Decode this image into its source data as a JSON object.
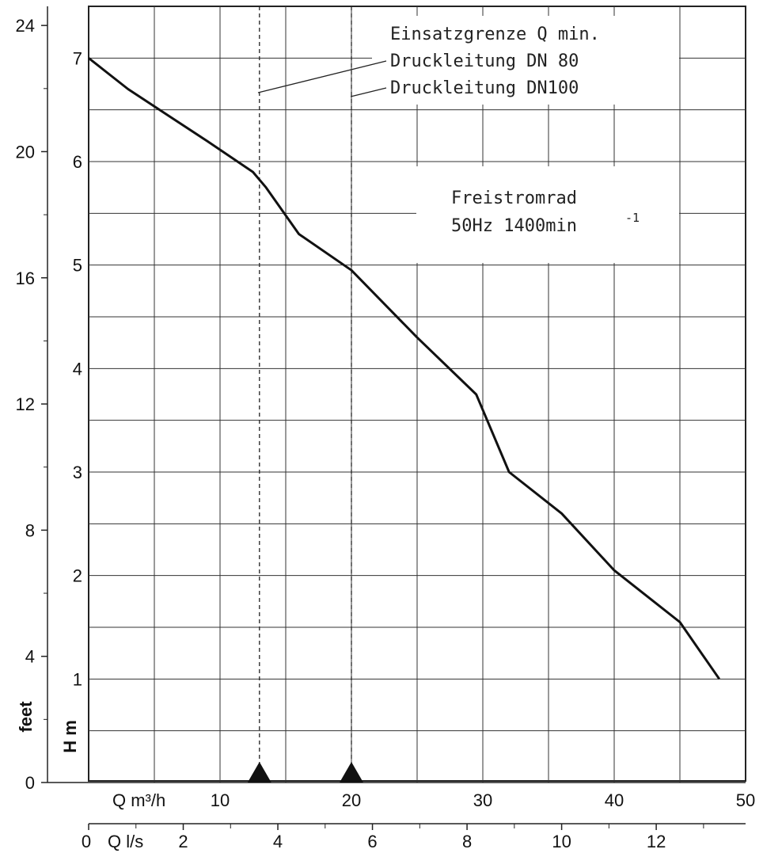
{
  "chart_data": {
    "type": "line",
    "x_unit_label": "Q m³/h",
    "x2_unit_label": "Q l/s",
    "y_unit_label": "H m",
    "y2_unit_label": "feet",
    "x_ticks": [
      "10",
      "20",
      "30",
      "40",
      "50"
    ],
    "x2_ticks": [
      "0",
      "2",
      "4",
      "6",
      "8",
      "10",
      "12"
    ],
    "y_ticks": [
      "1",
      "2",
      "3",
      "4",
      "5",
      "6",
      "7"
    ],
    "y2_ticks": [
      "0",
      "4",
      "8",
      "12",
      "16",
      "20",
      "24"
    ],
    "xlim": [
      0,
      50
    ],
    "ylim": [
      0,
      7.5
    ],
    "grid": true,
    "series": [
      {
        "x": [
          0,
          3,
          6,
          9,
          12.5,
          13.5,
          16,
          20,
          25,
          29.5,
          32,
          36,
          40,
          45,
          48
        ],
        "values": [
          7.0,
          6.7,
          6.45,
          6.2,
          5.9,
          5.75,
          5.3,
          4.95,
          4.3,
          3.75,
          3.0,
          2.6,
          2.05,
          1.55,
          1.0
        ]
      }
    ],
    "vlines": [
      {
        "x": 13
      },
      {
        "x": 20
      }
    ],
    "legend_lines": [
      "Einsatzgrenze Q min.",
      "Druckleitung DN 80",
      "Druckleitung DN100"
    ],
    "info_box": {
      "line1": "Freistromrad",
      "line2": "50Hz 1400min",
      "superscript": "-1"
    }
  },
  "colors": {
    "curve": "#111111",
    "grid": "#333333",
    "marker": "#111111"
  }
}
